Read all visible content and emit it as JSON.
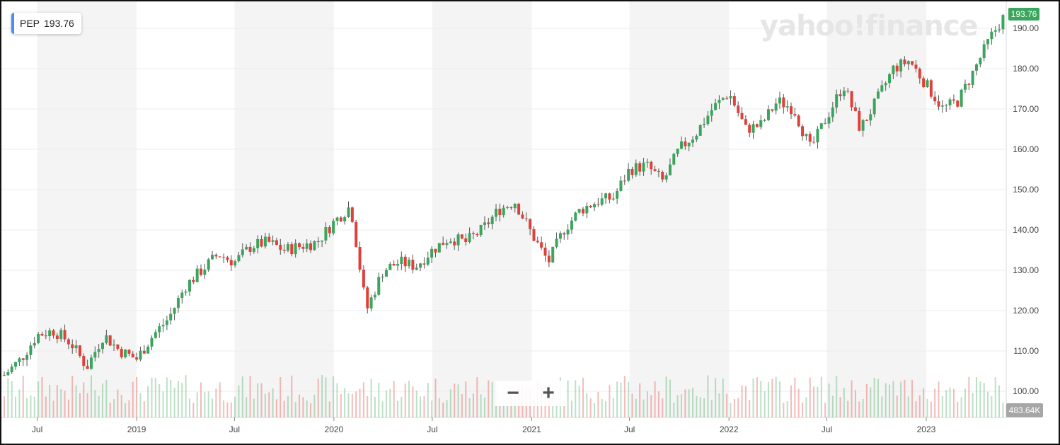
{
  "header": {
    "symbol": "PEP",
    "price": "193.76"
  },
  "brand": {
    "logo_text": "yahoo!finance"
  },
  "zoom": {
    "out_label": "−",
    "in_label": "+"
  },
  "last_price_tag": "193.76",
  "last_volume_tag": "483.64K",
  "colors": {
    "up": "#3ba55d",
    "down": "#e0403a",
    "band": "#f4f4f4",
    "grid": "#ececec",
    "accent": "#4b8df5"
  },
  "chart_data": {
    "type": "candlestick",
    "interval": "weekly",
    "y_axis": {
      "min": 100,
      "max": 190,
      "ticks": [
        "100.00",
        "110.00",
        "120.00",
        "130.00",
        "140.00",
        "150.00",
        "160.00",
        "170.00",
        "180.00",
        "190.00"
      ],
      "position": "right"
    },
    "x_axis": {
      "ticks": [
        "Jul",
        "2019",
        "Jul",
        "2020",
        "Jul",
        "2021",
        "Jul",
        "2022",
        "Jul",
        "2023"
      ]
    },
    "grid": true,
    "anchors": [
      [
        "2018-05-01",
        104
      ],
      [
        "2018-06-01",
        108
      ],
      [
        "2018-07-01",
        114
      ],
      [
        "2018-08-01",
        115
      ],
      [
        "2018-09-01",
        112
      ],
      [
        "2018-10-01",
        106
      ],
      [
        "2018-11-01",
        114
      ],
      [
        "2018-12-01",
        110
      ],
      [
        "2019-01-01",
        108
      ],
      [
        "2019-02-01",
        114
      ],
      [
        "2019-03-01",
        118
      ],
      [
        "2019-04-01",
        126
      ],
      [
        "2019-05-01",
        130
      ],
      [
        "2019-06-01",
        134
      ],
      [
        "2019-07-01",
        132
      ],
      [
        "2019-08-01",
        136
      ],
      [
        "2019-09-01",
        137
      ],
      [
        "2019-10-01",
        135
      ],
      [
        "2019-11-01",
        136
      ],
      [
        "2019-12-01",
        137
      ],
      [
        "2020-01-01",
        142
      ],
      [
        "2020-02-01",
        146
      ],
      [
        "2020-03-01",
        120
      ],
      [
        "2020-04-01",
        130
      ],
      [
        "2020-05-01",
        132
      ],
      [
        "2020-06-01",
        131
      ],
      [
        "2020-07-01",
        135
      ],
      [
        "2020-08-01",
        138
      ],
      [
        "2020-09-01",
        137
      ],
      [
        "2020-10-01",
        140
      ],
      [
        "2020-11-01",
        145
      ],
      [
        "2020-12-01",
        147
      ],
      [
        "2021-01-01",
        139
      ],
      [
        "2021-02-01",
        132
      ],
      [
        "2021-03-01",
        140
      ],
      [
        "2021-04-01",
        145
      ],
      [
        "2021-05-01",
        147
      ],
      [
        "2021-06-01",
        148
      ],
      [
        "2021-07-01",
        155
      ],
      [
        "2021-08-01",
        156
      ],
      [
        "2021-09-01",
        152
      ],
      [
        "2021-10-01",
        160
      ],
      [
        "2021-11-01",
        164
      ],
      [
        "2021-12-01",
        170
      ],
      [
        "2022-01-01",
        174
      ],
      [
        "2022-02-01",
        165
      ],
      [
        "2022-03-01",
        166
      ],
      [
        "2022-04-01",
        172
      ],
      [
        "2022-05-01",
        170
      ],
      [
        "2022-06-01",
        160
      ],
      [
        "2022-07-01",
        168
      ],
      [
        "2022-08-01",
        176
      ],
      [
        "2022-09-01",
        165
      ],
      [
        "2022-10-01",
        172
      ],
      [
        "2022-11-01",
        180
      ],
      [
        "2022-12-01",
        182
      ],
      [
        "2023-01-01",
        176
      ],
      [
        "2023-02-01",
        170
      ],
      [
        "2023-03-01",
        172
      ],
      [
        "2023-04-01",
        180
      ],
      [
        "2023-05-01",
        188
      ],
      [
        "2023-05-29",
        193.76
      ]
    ]
  }
}
